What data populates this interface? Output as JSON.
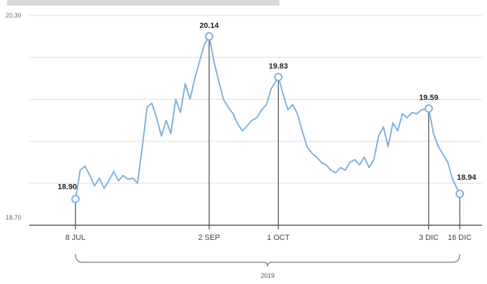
{
  "chart_data": {
    "type": "line",
    "title": "",
    "xlabel": "",
    "ylabel": "",
    "ylim": [
      18.7,
      20.3
    ],
    "ytick_labels": [
      "20.30",
      "18.70"
    ],
    "grid": true,
    "legend": "none",
    "line_color": "#7fb0dd",
    "year_label": "2019",
    "x_start": "2019-07-08",
    "x_end": "2019-12-16",
    "x_ticks": [
      {
        "date": "2019-07-08",
        "label": "8 JUL"
      },
      {
        "date": "2019-09-02",
        "label": "2 SEP"
      },
      {
        "date": "2019-10-01",
        "label": "1 OCT"
      },
      {
        "date": "2019-12-03",
        "label": "3 DIC"
      },
      {
        "date": "2019-12-16",
        "label": "16 DIC"
      }
    ],
    "annotations": [
      {
        "date": "2019-07-08",
        "value": 18.9,
        "label": "18.90"
      },
      {
        "date": "2019-09-02",
        "value": 20.14,
        "label": "20.14"
      },
      {
        "date": "2019-10-01",
        "value": 19.83,
        "label": "19.83"
      },
      {
        "date": "2019-12-03",
        "value": 19.59,
        "label": "19.59"
      },
      {
        "date": "2019-12-16",
        "value": 18.94,
        "label": "18.94"
      }
    ],
    "series": [
      {
        "points": [
          [
            "2019-07-08",
            18.9
          ],
          [
            "2019-07-10",
            19.12
          ],
          [
            "2019-07-12",
            19.15
          ],
          [
            "2019-07-14",
            19.08
          ],
          [
            "2019-07-16",
            19.0
          ],
          [
            "2019-07-18",
            19.06
          ],
          [
            "2019-07-20",
            18.98
          ],
          [
            "2019-07-22",
            19.04
          ],
          [
            "2019-07-24",
            19.11
          ],
          [
            "2019-07-26",
            19.04
          ],
          [
            "2019-07-28",
            19.08
          ],
          [
            "2019-07-30",
            19.05
          ],
          [
            "2019-08-01",
            19.06
          ],
          [
            "2019-08-03",
            19.02
          ],
          [
            "2019-08-05",
            19.3
          ],
          [
            "2019-08-06",
            19.45
          ],
          [
            "2019-08-07",
            19.6
          ],
          [
            "2019-08-09",
            19.63
          ],
          [
            "2019-08-11",
            19.52
          ],
          [
            "2019-08-13",
            19.38
          ],
          [
            "2019-08-15",
            19.5
          ],
          [
            "2019-08-17",
            19.4
          ],
          [
            "2019-08-19",
            19.66
          ],
          [
            "2019-08-21",
            19.56
          ],
          [
            "2019-08-23",
            19.78
          ],
          [
            "2019-08-25",
            19.66
          ],
          [
            "2019-08-27",
            19.82
          ],
          [
            "2019-08-29",
            19.95
          ],
          [
            "2019-08-31",
            20.08
          ],
          [
            "2019-09-02",
            20.14
          ],
          [
            "2019-09-04",
            19.95
          ],
          [
            "2019-09-06",
            19.8
          ],
          [
            "2019-09-08",
            19.66
          ],
          [
            "2019-09-10",
            19.6
          ],
          [
            "2019-09-12",
            19.55
          ],
          [
            "2019-09-14",
            19.47
          ],
          [
            "2019-09-16",
            19.42
          ],
          [
            "2019-09-18",
            19.46
          ],
          [
            "2019-09-20",
            19.5
          ],
          [
            "2019-09-22",
            19.52
          ],
          [
            "2019-09-24",
            19.58
          ],
          [
            "2019-09-26",
            19.62
          ],
          [
            "2019-09-28",
            19.74
          ],
          [
            "2019-10-01",
            19.83
          ],
          [
            "2019-10-03",
            19.7
          ],
          [
            "2019-10-05",
            19.58
          ],
          [
            "2019-10-07",
            19.62
          ],
          [
            "2019-10-09",
            19.55
          ],
          [
            "2019-10-11",
            19.42
          ],
          [
            "2019-10-13",
            19.3
          ],
          [
            "2019-10-15",
            19.25
          ],
          [
            "2019-10-17",
            19.22
          ],
          [
            "2019-10-19",
            19.18
          ],
          [
            "2019-10-21",
            19.16
          ],
          [
            "2019-10-23",
            19.12
          ],
          [
            "2019-10-25",
            19.1
          ],
          [
            "2019-10-27",
            19.14
          ],
          [
            "2019-10-29",
            19.12
          ],
          [
            "2019-10-31",
            19.18
          ],
          [
            "2019-11-02",
            19.2
          ],
          [
            "2019-11-04",
            19.16
          ],
          [
            "2019-11-06",
            19.22
          ],
          [
            "2019-11-08",
            19.14
          ],
          [
            "2019-11-10",
            19.2
          ],
          [
            "2019-11-12",
            19.38
          ],
          [
            "2019-11-14",
            19.45
          ],
          [
            "2019-11-16",
            19.3
          ],
          [
            "2019-11-18",
            19.48
          ],
          [
            "2019-11-20",
            19.42
          ],
          [
            "2019-11-22",
            19.55
          ],
          [
            "2019-11-24",
            19.52
          ],
          [
            "2019-11-26",
            19.56
          ],
          [
            "2019-11-28",
            19.55
          ],
          [
            "2019-11-30",
            19.58
          ],
          [
            "2019-12-03",
            19.59
          ],
          [
            "2019-12-05",
            19.4
          ],
          [
            "2019-12-07",
            19.3
          ],
          [
            "2019-12-09",
            19.24
          ],
          [
            "2019-12-11",
            19.18
          ],
          [
            "2019-12-13",
            19.05
          ],
          [
            "2019-12-16",
            18.94
          ]
        ]
      }
    ]
  }
}
